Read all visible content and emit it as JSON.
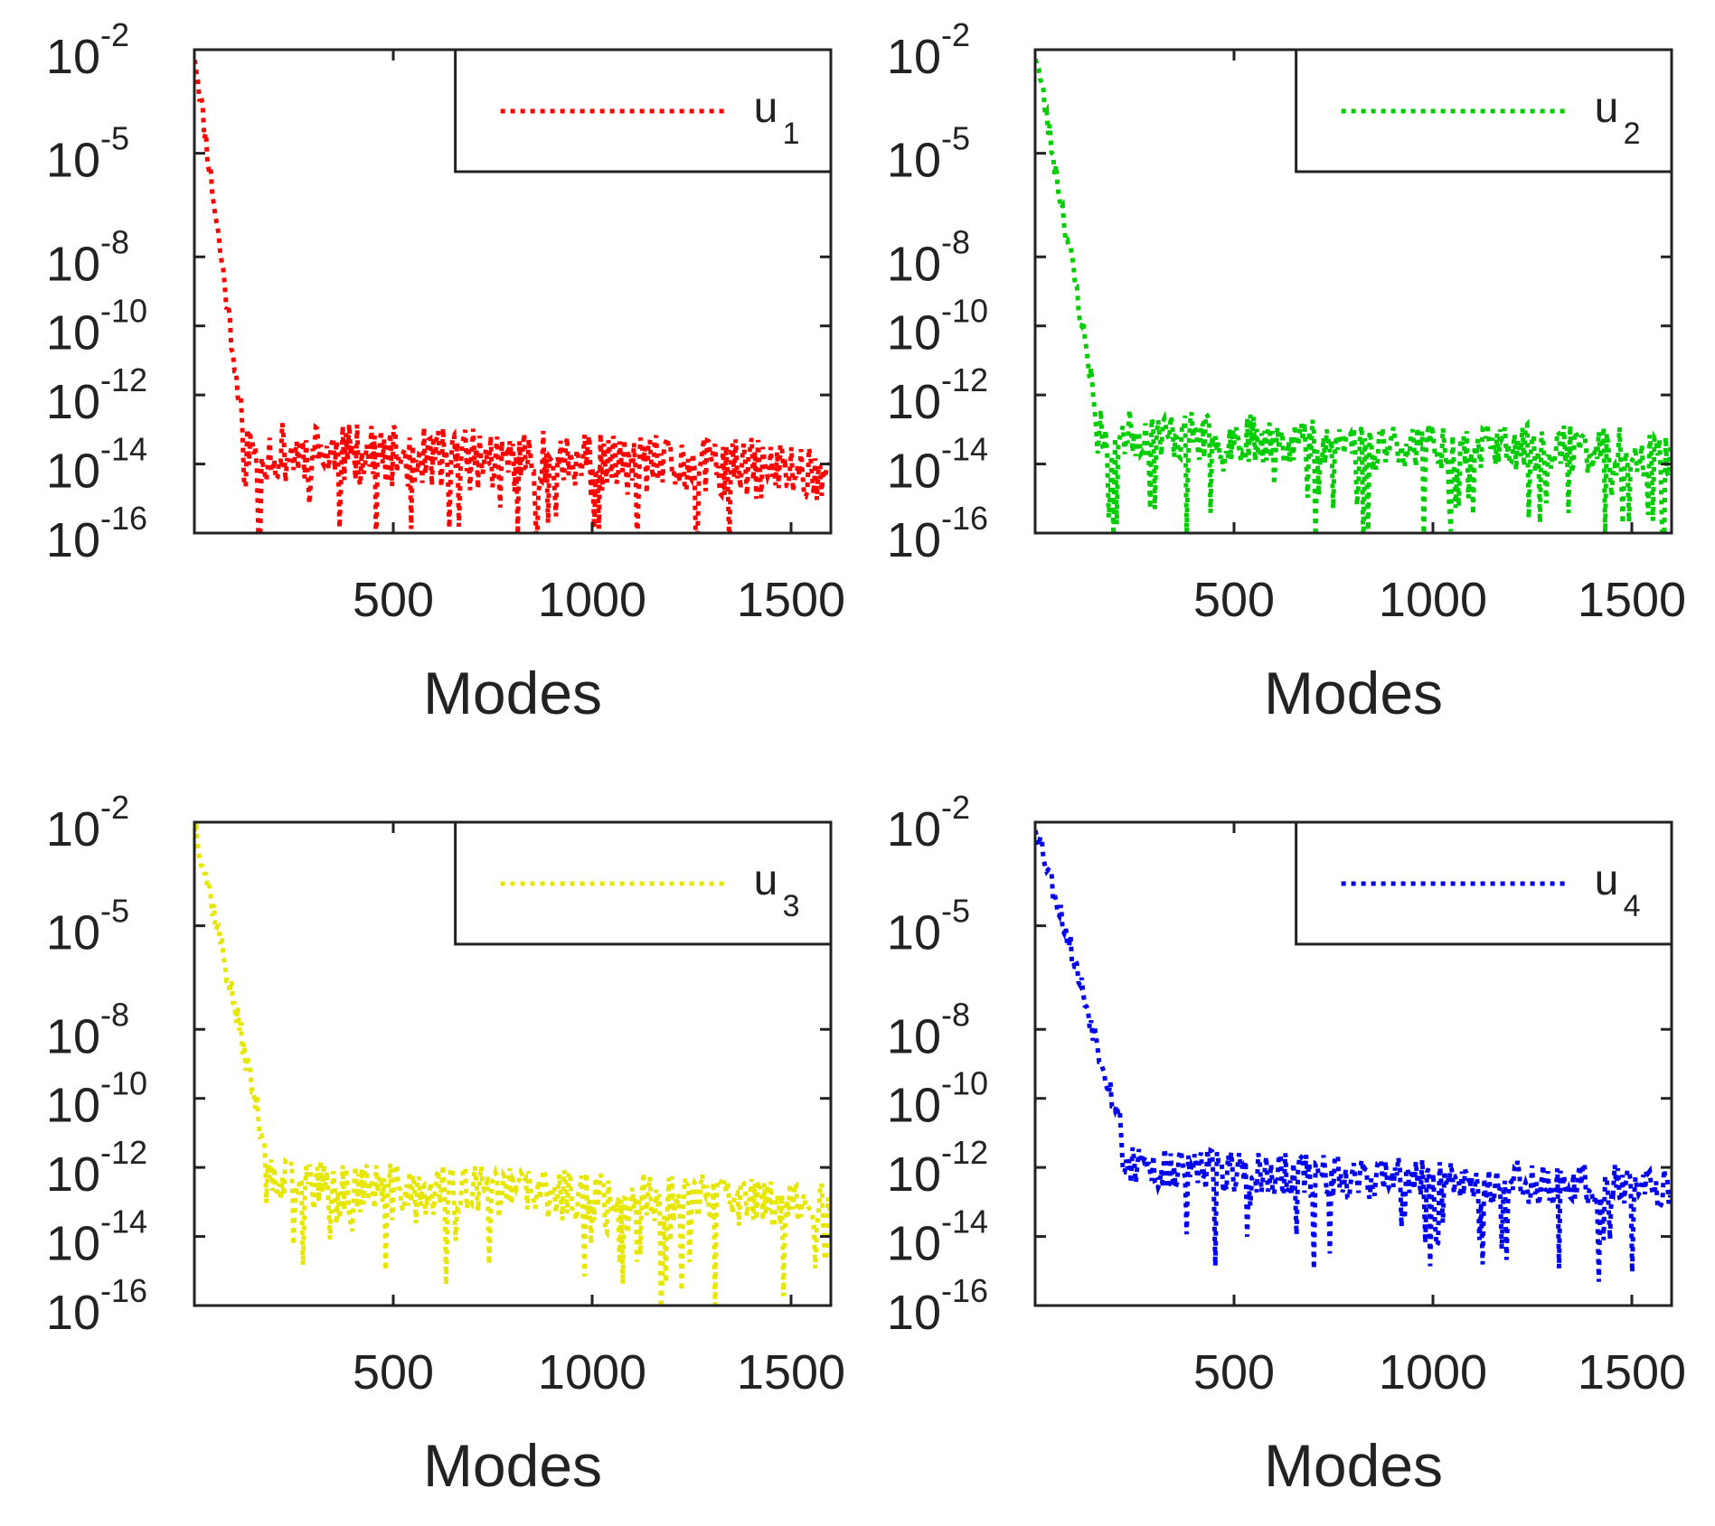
{
  "chart_data": [
    {
      "type": "line",
      "style": "dotted",
      "color": "#ff0000",
      "legend": {
        "label": "u",
        "subscript": "1",
        "position": "top-right"
      },
      "xlabel": "Modes",
      "ylabel": "",
      "xlim": [
        0,
        1600
      ],
      "ylim_exponent": [
        -16,
        -2
      ],
      "x_ticks": [
        500,
        1000,
        1500
      ],
      "y_ticks": [
        -16,
        -14,
        -12,
        -10,
        -8,
        -5,
        -2
      ],
      "y_tick_base": "10",
      "knee_x": 120,
      "floor_log": -13.9,
      "noise_spread": 1.8,
      "last_x": 1600,
      "seed": 11
    },
    {
      "type": "line",
      "style": "dotted",
      "color": "#00cc00",
      "legend": {
        "label": "u",
        "subscript": "2",
        "position": "top-right"
      },
      "xlabel": "Modes",
      "ylabel": "",
      "xlim": [
        0,
        1600
      ],
      "ylim_exponent": [
        -16,
        -2
      ],
      "x_ticks": [
        500,
        1000,
        1500
      ],
      "y_ticks": [
        -16,
        -14,
        -12,
        -10,
        -8,
        -5,
        -2
      ],
      "y_tick_base": "10",
      "knee_x": 150,
      "floor_log": -13.3,
      "noise_spread": 1.4,
      "last_x": 1600,
      "seed": 23
    },
    {
      "type": "line",
      "style": "dotted",
      "color": "#e6e600",
      "legend": {
        "label": "u",
        "subscript": "3",
        "position": "top-right"
      },
      "xlabel": "Modes",
      "ylabel": "",
      "xlim": [
        0,
        1600
      ],
      "ylim_exponent": [
        -16,
        -2
      ],
      "x_ticks": [
        500,
        1000,
        1500
      ],
      "y_ticks": [
        -16,
        -14,
        -12,
        -10,
        -8,
        -5,
        -2
      ],
      "y_tick_base": "10",
      "knee_x": 180,
      "floor_log": -12.7,
      "noise_spread": 1.5,
      "last_x": 1600,
      "seed": 37
    },
    {
      "type": "line",
      "style": "dotted",
      "color": "#0000ee",
      "legend": {
        "label": "u",
        "subscript": "4",
        "position": "top-right"
      },
      "xlabel": "Modes",
      "ylabel": "",
      "xlim": [
        0,
        1600
      ],
      "ylim_exponent": [
        -16,
        -2
      ],
      "x_ticks": [
        500,
        1000,
        1500
      ],
      "y_ticks": [
        -16,
        -14,
        -12,
        -10,
        -8,
        -5,
        -2
      ],
      "y_tick_base": "10",
      "knee_x": 220,
      "floor_log": -12.2,
      "noise_spread": 1.3,
      "last_x": 1600,
      "seed": 53
    }
  ]
}
